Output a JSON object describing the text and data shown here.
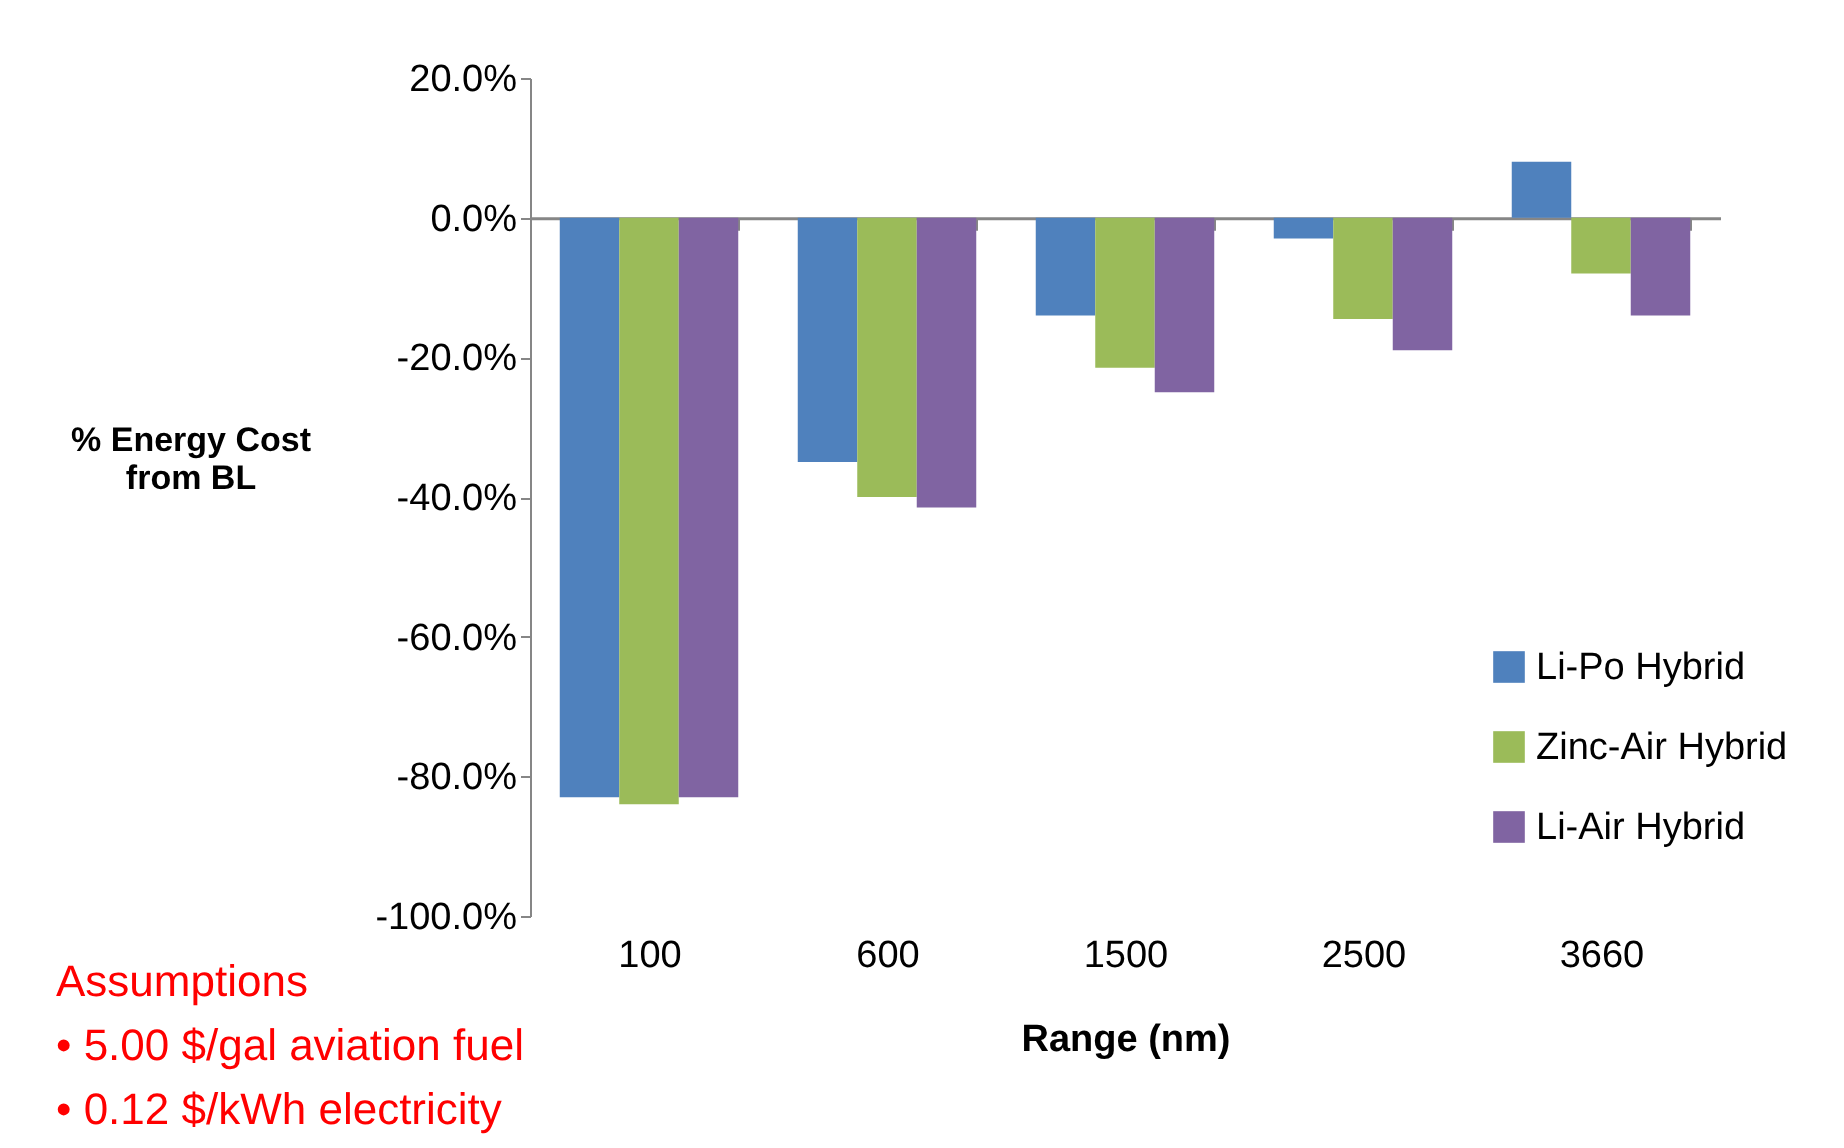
{
  "chart_data": {
    "type": "bar",
    "xlabel": "Range (nm)",
    "ylabel": "% Energy Cost\nfrom BL",
    "categories": [
      "100",
      "600",
      "1500",
      "2500",
      "3660"
    ],
    "series": [
      {
        "name": "Li-Po Hybrid",
        "color": "#4f81bd",
        "values": [
          -83,
          -35,
          -14,
          -3,
          8
        ]
      },
      {
        "name": "Zinc-Air Hybrid",
        "color": "#9bbb59",
        "values": [
          -84,
          -40,
          -21.5,
          -14.5,
          -8
        ]
      },
      {
        "name": "Li-Air Hybrid",
        "color": "#8064a2",
        "values": [
          -83,
          -41.5,
          -25,
          -19,
          -14
        ]
      }
    ],
    "ylim": [
      -100,
      20
    ],
    "yticks": [
      {
        "value": -100,
        "label": "-100.0%"
      },
      {
        "value": -80,
        "label": "-80.0%"
      },
      {
        "value": -60,
        "label": "-60.0%"
      },
      {
        "value": -40,
        "label": "-40.0%"
      },
      {
        "value": -20,
        "label": "-20.0%"
      },
      {
        "value": 0,
        "label": "0.0%"
      },
      {
        "value": 20,
        "label": "20.0%"
      }
    ],
    "legend": "bottom right",
    "annotations": [
      "Assumptions",
      "•     5.00 $/gal aviation fuel",
      "•     0.12 $/kWh electricity"
    ]
  }
}
